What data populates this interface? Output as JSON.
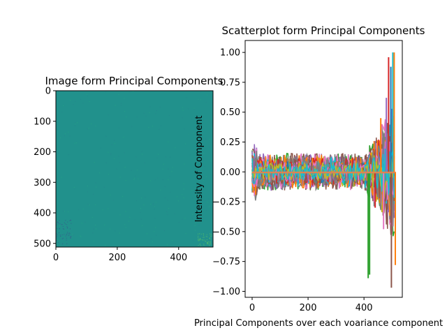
{
  "chart_data": [
    {
      "type": "heatmap",
      "title": "Image form Principal Components",
      "xlabel": "",
      "ylabel": "",
      "xlim": [
        0,
        512
      ],
      "ylim": [
        512,
        0
      ],
      "xticks": [
        "0",
        "200",
        "400"
      ],
      "xtick_values": [
        0,
        200,
        400
      ],
      "yticks": [
        "0",
        "100",
        "200",
        "300",
        "400",
        "500"
      ],
      "ytick_values": [
        0,
        100,
        200,
        300,
        400,
        500
      ],
      "colormap": "viridis",
      "dominant_color": "#21918c"
    },
    {
      "type": "line",
      "title": "Scatterplot form Principal Components",
      "xlabel": "Principal Components over each voariance component",
      "ylabel": "Intensity of Component",
      "xlim": [
        -25,
        537
      ],
      "ylim": [
        -1.05,
        1.1
      ],
      "xticks": [
        "0",
        "200",
        "400"
      ],
      "xtick_values": [
        0,
        200,
        400
      ],
      "yticks": [
        "1.00",
        "0.75",
        "0.50",
        "0.25",
        "0.00",
        "−0.25",
        "−0.50",
        "−0.75",
        "−1.00"
      ],
      "ytick_values": [
        1.0,
        0.75,
        0.5,
        0.25,
        0.0,
        -0.25,
        -0.5,
        -0.75,
        -1.0
      ],
      "series_count": 512,
      "points_per_series": 512,
      "colors": [
        "#1f77b4",
        "#ff7f0e",
        "#2ca02c",
        "#d62728",
        "#9467bd",
        "#8c564b",
        "#e377c2",
        "#7f7f7f",
        "#bcbd22",
        "#17becf"
      ],
      "typical_range": [
        -0.2,
        0.2
      ],
      "extreme_range": [
        -0.97,
        1.0
      ],
      "grid": false,
      "legend": "none"
    }
  ]
}
